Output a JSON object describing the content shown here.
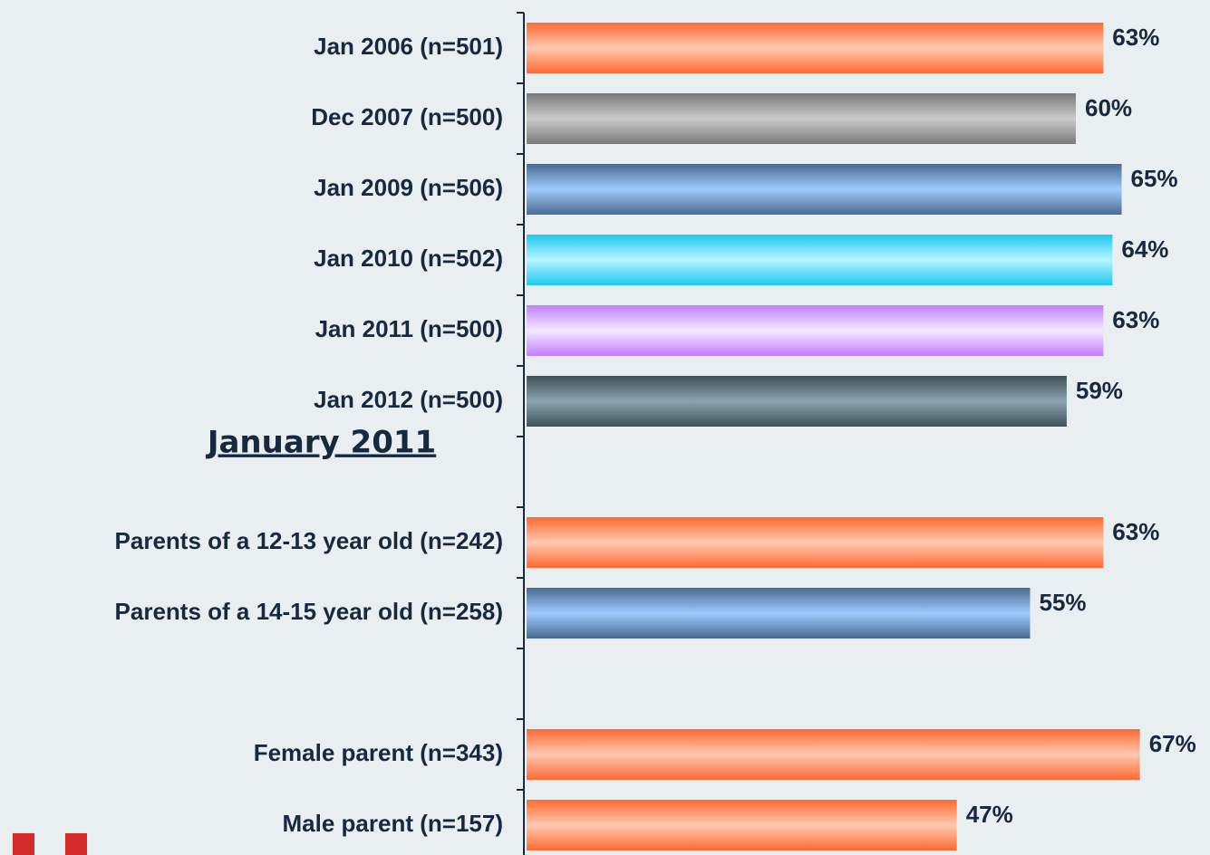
{
  "chart_data": {
    "type": "hbar",
    "annotations": [
      "January 2011"
    ],
    "categories": [
      "Jan 2006 (n=501)",
      "Dec 2007 (n=500)",
      "Jan 2009 (n=506)",
      "Jan 2010 (n=502)",
      "Jan 2011 (n=500)",
      "Jan 2012 (n=500)",
      null,
      "Parents of a 12-13 year old (n=242)",
      "Parents of a 14-15 year old (n=258)",
      null,
      "Female parent (n=343)",
      "Male parent (n=157)"
    ],
    "values": [
      63,
      60,
      65,
      64,
      63,
      59,
      null,
      63,
      55,
      null,
      67,
      47
    ],
    "value_labels": [
      "63%",
      "60%",
      "65%",
      "64%",
      "63%",
      "59%",
      null,
      "63%",
      "55%",
      null,
      "67%",
      "47%"
    ],
    "colors": [
      "#ff6a33",
      "#7a7a7a",
      "#4a6a90",
      "#20c8f0",
      "#c080ff",
      "#3e5058",
      null,
      "#ff6a33",
      "#4a6a90",
      null,
      "#ff6a33",
      "#ff6a33"
    ],
    "center_colors": [
      "#ffc8b0",
      "#cacaca",
      "#9ecbff",
      "#b8f4ff",
      "#f4e8ff",
      "#8aa4ae",
      null,
      "#ffc8b0",
      "#9ecbff",
      null,
      "#ffc8b0",
      "#ffc8b0"
    ]
  }
}
